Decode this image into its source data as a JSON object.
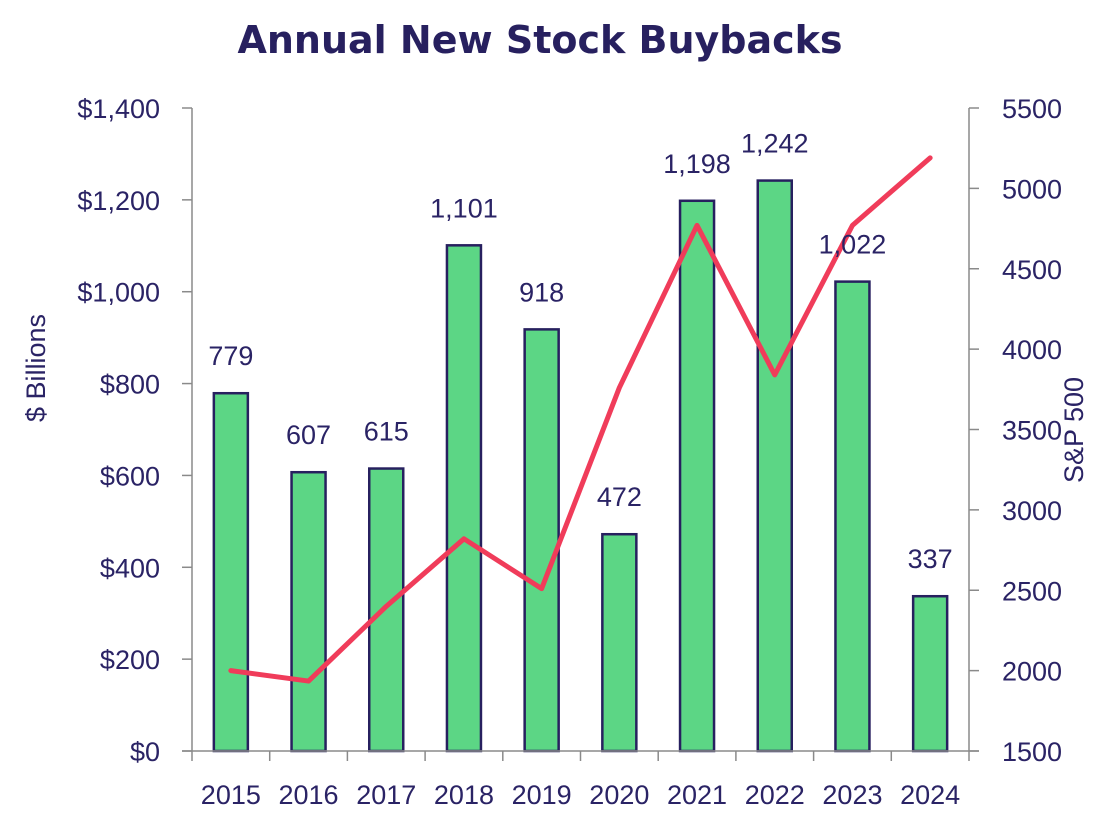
{
  "chart_data": {
    "type": "bar",
    "title": "Annual New Stock Buybacks",
    "categories": [
      "2015",
      "2016",
      "2017",
      "2018",
      "2019",
      "2020",
      "2021",
      "2022",
      "2023",
      "2024"
    ],
    "series": [
      {
        "type": "bar",
        "axis": "left",
        "values": [
          779,
          607,
          615,
          1101,
          918,
          472,
          1198,
          1242,
          1022,
          337
        ],
        "labels": [
          "779",
          "607",
          "615",
          "1,101",
          "918",
          "472",
          "1,198",
          "1,242",
          "1,022",
          "337"
        ],
        "color": "#5cd685",
        "stroke": "#27205f"
      },
      {
        "type": "line",
        "axis": "right",
        "values": [
          2000,
          1935,
          2400,
          2820,
          2510,
          3760,
          4770,
          3840,
          4770,
          5190
        ],
        "color": "#f03c5a"
      }
    ],
    "ylabel": "$ Billions",
    "y2label": "S&P 500",
    "ylim": [
      0,
      1400
    ],
    "y2lim": [
      1500,
      5500
    ],
    "yticks": [
      "$0",
      "$200",
      "$400",
      "$600",
      "$800",
      "$1,000",
      "$1,200",
      "$1,400"
    ],
    "y2ticks": [
      "1500",
      "2000",
      "2500",
      "3000",
      "3500",
      "4000",
      "4500",
      "5000",
      "5500"
    ],
    "grid": false,
    "legend": "none",
    "axis_color": "#8a8a8a",
    "text_color": "#2a2365"
  }
}
